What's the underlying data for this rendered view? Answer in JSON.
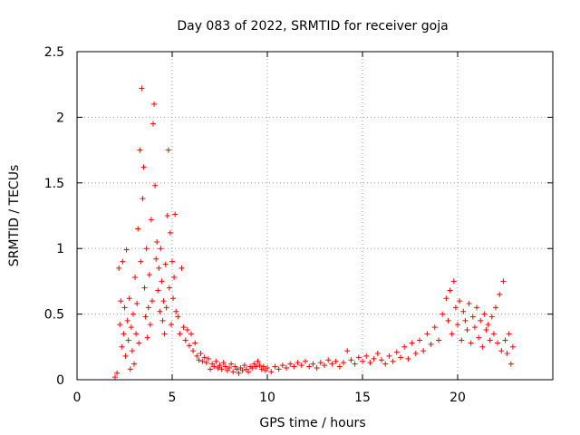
{
  "chart_data": {
    "type": "scatter",
    "title": "Day 083 of 2022, SRMTID for receiver goja",
    "xlabel": "GPS time / hours",
    "ylabel": "SRMTID / TECUs",
    "xlim": [
      0,
      25
    ],
    "ylim": [
      0,
      2.5
    ],
    "xticks": [
      0,
      5,
      10,
      15,
      20
    ],
    "yticks": [
      0,
      0.5,
      1,
      1.5,
      2,
      2.5
    ],
    "xtick_labels": [
      "0",
      "5",
      "10",
      "15",
      "20"
    ],
    "ytick_labels": [
      "0",
      "0.5",
      "1",
      "1.5",
      "2",
      "2.5"
    ],
    "grid": true,
    "marker": "+",
    "series_color": "#ff0000",
    "points": [
      [
        2.0,
        0.02
      ],
      [
        2.1,
        0.05
      ],
      [
        2.2,
        0.85
      ],
      [
        2.25,
        0.42
      ],
      [
        2.3,
        0.6
      ],
      [
        2.35,
        0.25
      ],
      [
        2.4,
        0.9
      ],
      [
        2.45,
        0.35
      ],
      [
        2.5,
        0.55
      ],
      [
        2.55,
        0.18
      ],
      [
        2.6,
        0.99
      ],
      [
        2.65,
        0.45
      ],
      [
        2.7,
        0.3
      ],
      [
        2.75,
        0.62
      ],
      [
        2.8,
        0.08
      ],
      [
        2.85,
        0.4
      ],
      [
        2.9,
        0.22
      ],
      [
        2.95,
        0.5
      ],
      [
        3.0,
        0.12
      ],
      [
        3.05,
        0.78
      ],
      [
        3.1,
        0.35
      ],
      [
        3.15,
        0.58
      ],
      [
        3.2,
        1.15
      ],
      [
        3.25,
        0.28
      ],
      [
        3.3,
        1.75
      ],
      [
        3.35,
        0.9
      ],
      [
        3.4,
        2.22
      ],
      [
        3.45,
        1.38
      ],
      [
        3.5,
        1.62
      ],
      [
        3.55,
        0.7
      ],
      [
        3.6,
        0.48
      ],
      [
        3.65,
        1.0
      ],
      [
        3.7,
        0.32
      ],
      [
        3.75,
        0.55
      ],
      [
        3.8,
        0.8
      ],
      [
        3.85,
        0.42
      ],
      [
        3.9,
        1.22
      ],
      [
        3.95,
        0.6
      ],
      [
        4.0,
        1.95
      ],
      [
        4.05,
        2.1
      ],
      [
        4.1,
        1.48
      ],
      [
        4.15,
        0.92
      ],
      [
        4.2,
        1.05
      ],
      [
        4.25,
        0.68
      ],
      [
        4.3,
        0.85
      ],
      [
        4.35,
        0.52
      ],
      [
        4.4,
        1.0
      ],
      [
        4.45,
        0.75
      ],
      [
        4.5,
        0.45
      ],
      [
        4.55,
        0.6
      ],
      [
        4.6,
        0.35
      ],
      [
        4.65,
        0.88
      ],
      [
        4.7,
        0.55
      ],
      [
        4.75,
        1.25
      ],
      [
        4.8,
        1.75
      ],
      [
        4.85,
        0.7
      ],
      [
        4.9,
        1.12
      ],
      [
        4.95,
        0.42
      ],
      [
        5.0,
        0.9
      ],
      [
        5.05,
        0.62
      ],
      [
        5.1,
        0.78
      ],
      [
        5.15,
        1.26
      ],
      [
        5.2,
        0.52
      ],
      [
        5.3,
        0.48
      ],
      [
        5.4,
        0.35
      ],
      [
        5.5,
        0.85
      ],
      [
        5.6,
        0.4
      ],
      [
        5.7,
        0.3
      ],
      [
        5.8,
        0.38
      ],
      [
        5.9,
        0.26
      ],
      [
        6.0,
        0.35
      ],
      [
        6.1,
        0.22
      ],
      [
        6.2,
        0.28
      ],
      [
        6.3,
        0.18
      ],
      [
        6.4,
        0.15
      ],
      [
        6.5,
        0.2
      ],
      [
        6.6,
        0.14
      ],
      [
        6.7,
        0.17
      ],
      [
        6.8,
        0.13
      ],
      [
        6.9,
        0.16
      ],
      [
        7.0,
        0.08
      ],
      [
        7.1,
        0.12
      ],
      [
        7.2,
        0.1
      ],
      [
        7.3,
        0.14
      ],
      [
        7.4,
        0.09
      ],
      [
        7.5,
        0.11
      ],
      [
        7.6,
        0.08
      ],
      [
        7.7,
        0.13
      ],
      [
        7.8,
        0.1
      ],
      [
        7.9,
        0.07
      ],
      [
        8.0,
        0.09
      ],
      [
        8.1,
        0.12
      ],
      [
        8.2,
        0.06
      ],
      [
        8.3,
        0.1
      ],
      [
        8.4,
        0.08
      ],
      [
        8.5,
        0.05
      ],
      [
        8.6,
        0.09
      ],
      [
        8.7,
        0.07
      ],
      [
        8.8,
        0.11
      ],
      [
        8.9,
        0.08
      ],
      [
        9.0,
        0.06
      ],
      [
        9.1,
        0.1
      ],
      [
        9.2,
        0.09
      ],
      [
        9.3,
        0.12
      ],
      [
        9.4,
        0.1
      ],
      [
        9.5,
        0.14
      ],
      [
        9.6,
        0.11
      ],
      [
        9.7,
        0.08
      ],
      [
        9.8,
        0.1
      ],
      [
        9.9,
        0.07
      ],
      [
        10.0,
        0.09
      ],
      [
        10.2,
        0.06
      ],
      [
        10.4,
        0.1
      ],
      [
        10.6,
        0.08
      ],
      [
        10.8,
        0.11
      ],
      [
        11.0,
        0.09
      ],
      [
        11.2,
        0.12
      ],
      [
        11.4,
        0.1
      ],
      [
        11.6,
        0.13
      ],
      [
        11.8,
        0.11
      ],
      [
        12.0,
        0.14
      ],
      [
        12.2,
        0.1
      ],
      [
        12.4,
        0.12
      ],
      [
        12.6,
        0.09
      ],
      [
        12.8,
        0.13
      ],
      [
        13.0,
        0.11
      ],
      [
        13.2,
        0.15
      ],
      [
        13.4,
        0.12
      ],
      [
        13.6,
        0.14
      ],
      [
        13.8,
        0.1
      ],
      [
        14.0,
        0.13
      ],
      [
        14.2,
        0.22
      ],
      [
        14.4,
        0.15
      ],
      [
        14.6,
        0.12
      ],
      [
        14.8,
        0.17
      ],
      [
        15.0,
        0.14
      ],
      [
        15.2,
        0.18
      ],
      [
        15.4,
        0.13
      ],
      [
        15.6,
        0.16
      ],
      [
        15.8,
        0.2
      ],
      [
        16.0,
        0.15
      ],
      [
        16.2,
        0.12
      ],
      [
        16.4,
        0.18
      ],
      [
        16.6,
        0.14
      ],
      [
        16.8,
        0.21
      ],
      [
        17.0,
        0.17
      ],
      [
        17.2,
        0.25
      ],
      [
        17.4,
        0.16
      ],
      [
        17.6,
        0.28
      ],
      [
        17.8,
        0.2
      ],
      [
        18.0,
        0.3
      ],
      [
        18.2,
        0.22
      ],
      [
        18.4,
        0.35
      ],
      [
        18.6,
        0.27
      ],
      [
        18.8,
        0.4
      ],
      [
        19.0,
        0.3
      ],
      [
        19.2,
        0.5
      ],
      [
        19.4,
        0.62
      ],
      [
        19.5,
        0.45
      ],
      [
        19.6,
        0.68
      ],
      [
        19.7,
        0.35
      ],
      [
        19.8,
        0.75
      ],
      [
        19.9,
        0.55
      ],
      [
        20.0,
        0.42
      ],
      [
        20.1,
        0.6
      ],
      [
        20.2,
        0.3
      ],
      [
        20.3,
        0.52
      ],
      [
        20.4,
        0.45
      ],
      [
        20.5,
        0.38
      ],
      [
        20.6,
        0.58
      ],
      [
        20.7,
        0.28
      ],
      [
        20.8,
        0.48
      ],
      [
        20.9,
        0.4
      ],
      [
        21.0,
        0.55
      ],
      [
        21.1,
        0.32
      ],
      [
        21.2,
        0.45
      ],
      [
        21.3,
        0.25
      ],
      [
        21.4,
        0.5
      ],
      [
        21.5,
        0.38
      ],
      [
        21.6,
        0.42
      ],
      [
        21.7,
        0.3
      ],
      [
        21.8,
        0.48
      ],
      [
        21.9,
        0.35
      ],
      [
        22.0,
        0.55
      ],
      [
        22.1,
        0.28
      ],
      [
        22.2,
        0.65
      ],
      [
        22.3,
        0.22
      ],
      [
        22.4,
        0.75
      ],
      [
        22.5,
        0.3
      ],
      [
        22.6,
        0.2
      ],
      [
        22.7,
        0.35
      ],
      [
        22.8,
        0.12
      ],
      [
        22.9,
        0.25
      ]
    ]
  }
}
